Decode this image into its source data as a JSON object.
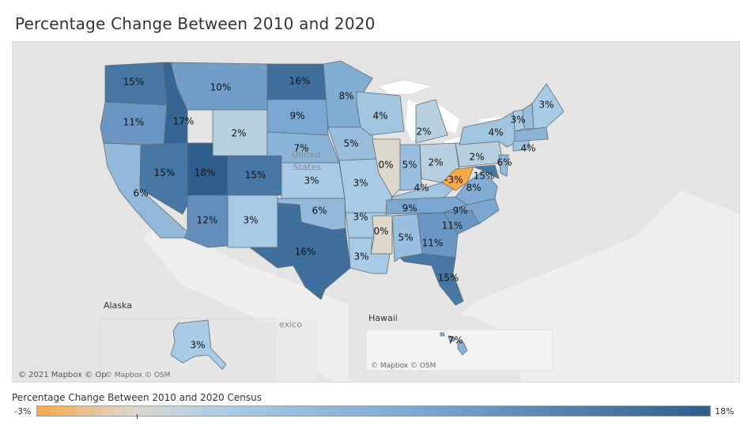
{
  "title": "Percentage Change Between 2010 and 2020",
  "colors": {
    "min": "#f7a94a",
    "zero": "#ddd7cc",
    "low": "#a9cde6",
    "mid": "#7aa7d0",
    "max": "#2e5f8c",
    "land": "#e2e2e2",
    "water": "#eeeeee"
  },
  "map_labels": {
    "alaska": "Alaska",
    "hawaii": "Hawaii",
    "mexico": "exico",
    "united_states": "United",
    "united_states_2": "States",
    "attribution_main": "© 2021 Mapbox © Op",
    "attribution_alaska": "© Mapbox © OSM",
    "attribution_hawaii": "© Mapbox © OSM"
  },
  "legend": {
    "title": "Percentage Change Between 2010 and 2020 Census",
    "min_label": "-3%",
    "max_label": "18%",
    "min": -3,
    "max": 18
  },
  "states": [
    {
      "abbr": "WA",
      "value": 15,
      "label": "15%"
    },
    {
      "abbr": "OR",
      "value": 11,
      "label": "11%"
    },
    {
      "abbr": "CA",
      "value": 6,
      "label": "6%"
    },
    {
      "abbr": "ID",
      "value": 17,
      "label": "17%"
    },
    {
      "abbr": "NV",
      "value": 15,
      "label": "15%"
    },
    {
      "abbr": "MT",
      "value": 10,
      "label": "10%"
    },
    {
      "abbr": "WY",
      "value": 2,
      "label": "2%"
    },
    {
      "abbr": "UT",
      "value": 18,
      "label": "18%"
    },
    {
      "abbr": "AZ",
      "value": 12,
      "label": "12%"
    },
    {
      "abbr": "CO",
      "value": 15,
      "label": "15%"
    },
    {
      "abbr": "NM",
      "value": 3,
      "label": "3%"
    },
    {
      "abbr": "ND",
      "value": 16,
      "label": "16%"
    },
    {
      "abbr": "SD",
      "value": 9,
      "label": "9%"
    },
    {
      "abbr": "NE",
      "value": 7,
      "label": "7%"
    },
    {
      "abbr": "KS",
      "value": 3,
      "label": "3%"
    },
    {
      "abbr": "OK",
      "value": 6,
      "label": "6%"
    },
    {
      "abbr": "TX",
      "value": 16,
      "label": "16%"
    },
    {
      "abbr": "MN",
      "value": 8,
      "label": "8%"
    },
    {
      "abbr": "IA",
      "value": 5,
      "label": "5%"
    },
    {
      "abbr": "MO",
      "value": 3,
      "label": "3%"
    },
    {
      "abbr": "AR",
      "value": 3,
      "label": "3%"
    },
    {
      "abbr": "LA",
      "value": 3,
      "label": "3%"
    },
    {
      "abbr": "WI",
      "value": 4,
      "label": "4%"
    },
    {
      "abbr": "IL",
      "value": 0,
      "label": "0%"
    },
    {
      "abbr": "MI",
      "value": 2,
      "label": "2%"
    },
    {
      "abbr": "IN",
      "value": 5,
      "label": "5%"
    },
    {
      "abbr": "OH",
      "value": 2,
      "label": "2%"
    },
    {
      "abbr": "KY",
      "value": 4,
      "label": "4%"
    },
    {
      "abbr": "TN",
      "value": 9,
      "label": "9%"
    },
    {
      "abbr": "MS",
      "value": 0,
      "label": "0%"
    },
    {
      "abbr": "AL",
      "value": 5,
      "label": "5%"
    },
    {
      "abbr": "GA",
      "value": 11,
      "label": "11%"
    },
    {
      "abbr": "FL",
      "value": 15,
      "label": "15%"
    },
    {
      "abbr": "SC",
      "value": 11,
      "label": "11%"
    },
    {
      "abbr": "NC",
      "value": 9,
      "label": "9%"
    },
    {
      "abbr": "VA",
      "value": 8,
      "label": "8%"
    },
    {
      "abbr": "WV",
      "value": -3,
      "label": "-3%"
    },
    {
      "abbr": "MD",
      "value": 15,
      "label": "15%"
    },
    {
      "abbr": "PA",
      "value": 2,
      "label": "2%"
    },
    {
      "abbr": "NY",
      "value": 4,
      "label": "4%"
    },
    {
      "abbr": "NJ",
      "value": 6,
      "label": "6%"
    },
    {
      "abbr": "CT",
      "value": 4,
      "label": "4%"
    },
    {
      "abbr": "VT",
      "value": 3,
      "label": "3%"
    },
    {
      "abbr": "NH",
      "value": 5,
      "label": ""
    },
    {
      "abbr": "MA",
      "value": 7,
      "label": ""
    },
    {
      "abbr": "ME",
      "value": 3,
      "label": "3%"
    },
    {
      "abbr": "AK",
      "value": 3,
      "label": "3%"
    },
    {
      "abbr": "HI",
      "value": 7,
      "label": "7%"
    }
  ]
}
